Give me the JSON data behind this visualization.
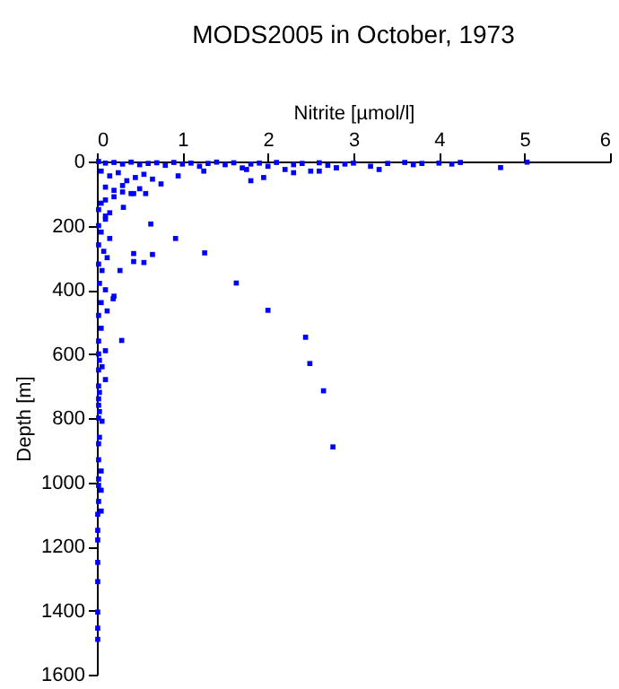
{
  "chart_data": {
    "type": "scatter",
    "title": "MODS2005 in October, 1973",
    "xlabel": "Nitrite [µmol/l]",
    "ylabel": "Depth [m]",
    "xlim": [
      0,
      6
    ],
    "xticks": [
      0,
      1,
      2,
      3,
      4,
      5,
      6
    ],
    "ylim": [
      1600,
      0
    ],
    "yticks": [
      0,
      200,
      400,
      600,
      800,
      1000,
      1200,
      1400,
      1600
    ],
    "grid": false,
    "marker": "square",
    "legend": false,
    "series": [
      {
        "color": "#0000ff",
        "x": [
          0.02,
          0.1,
          0.2,
          0.3,
          0.4,
          0.5,
          0.6,
          0.7,
          0.8,
          0.9,
          1.0,
          1.1,
          1.2,
          1.3,
          1.4,
          1.5,
          1.6,
          1.7,
          1.8,
          1.9,
          2.0,
          2.1,
          2.2,
          2.3,
          2.4,
          2.5,
          2.6,
          2.7,
          2.8,
          2.9,
          3.0,
          3.2,
          3.4,
          3.6,
          3.7,
          3.8,
          4.0,
          4.15,
          4.25,
          4.72,
          5.03,
          0.05,
          0.15,
          0.25,
          0.35,
          0.45,
          0.55,
          0.65,
          0.75,
          0.95,
          1.25,
          1.75,
          1.8,
          1.95,
          2.3,
          2.6,
          2.8,
          3.3,
          0.1,
          0.2,
          0.3,
          0.4,
          0.5,
          0.1,
          0.2,
          0.3,
          0.02,
          0.05,
          0.1,
          0.15,
          0.02,
          0.05,
          0.1,
          0.15,
          0.02,
          0.08,
          0.12,
          0.02,
          0.06,
          0.03,
          0.1,
          0.05,
          0.2,
          0.63,
          0.92,
          1.26,
          1.63,
          2.0,
          2.44,
          0.43,
          0.65,
          0.55,
          0.43,
          0.27,
          0.19,
          0.29,
          0.12,
          0.31,
          0.57,
          0.43,
          0.02,
          0.05,
          0.02,
          0.1,
          0.02,
          0.03,
          0.06,
          0.02,
          0.1,
          0.02,
          0.03,
          0.02,
          0.02,
          0.03,
          0.02,
          0.06,
          0.03,
          0.02,
          0.02,
          0.05,
          0.02,
          0.02,
          0.05,
          0.02,
          0.05,
          0.01,
          0.01,
          0.01,
          0.01,
          0.01,
          0.01,
          0.01,
          0.01,
          2.49,
          2.65,
          2.76
        ],
        "values": [
          0,
          5,
          3,
          8,
          2,
          10,
          6,
          4,
          12,
          3,
          8,
          5,
          15,
          6,
          2,
          10,
          4,
          20,
          8,
          5,
          15,
          3,
          25,
          10,
          6,
          30,
          4,
          12,
          20,
          8,
          5,
          15,
          6,
          3,
          10,
          6,
          5,
          8,
          3,
          19,
          2,
          30,
          45,
          35,
          60,
          50,
          40,
          55,
          70,
          45,
          30,
          25,
          60,
          50,
          35,
          30,
          20,
          25,
          80,
          90,
          75,
          100,
          85,
          120,
          110,
          95,
          150,
          130,
          170,
          160,
          200,
          220,
          180,
          240,
          260,
          280,
          300,
          320,
          340,
          380,
          400,
          440,
          420,
          195,
          240,
          285,
          379,
          464,
          548,
          287,
          290,
          315,
          312,
          340,
          428,
          558,
          466,
          143,
          100,
          100,
          480,
          520,
          560,
          590,
          600,
          620,
          640,
          650,
          680,
          700,
          720,
          740,
          760,
          780,
          800,
          810,
          860,
          880,
          930,
          965,
          990,
          1010,
          1025,
          1060,
          1090,
          1100,
          1150,
          1180,
          1250,
          1310,
          1405,
          1455,
          1490,
          630,
          715,
          890
        ]
      }
    ]
  }
}
